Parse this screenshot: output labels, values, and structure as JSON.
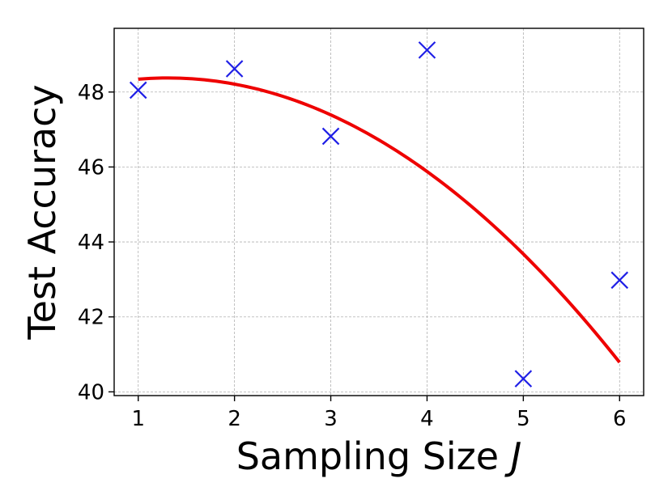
{
  "chart_data": {
    "type": "scatter",
    "x": [
      1,
      2,
      3,
      4,
      5,
      6
    ],
    "y": [
      48.05,
      48.62,
      46.82,
      49.12,
      40.35,
      42.98
    ],
    "marker": "x",
    "marker_color": "#1f1fe6",
    "fit": {
      "kind": "quadratic",
      "coefficients": [
        -0.345,
        0.904,
        47.783
      ],
      "x_range": [
        1,
        6
      ],
      "color": "#ee0000"
    },
    "xlabel": "Sampling Size",
    "xlabel_var": "J",
    "ylabel": "Test Accuracy",
    "xticks": [
      "1",
      "2",
      "3",
      "4",
      "5",
      "6"
    ],
    "yticks": [
      "40",
      "42",
      "44",
      "46",
      "48"
    ],
    "xlim": [
      0.75,
      6.25
    ],
    "ylim": [
      39.9,
      49.7
    ],
    "grid": true
  }
}
